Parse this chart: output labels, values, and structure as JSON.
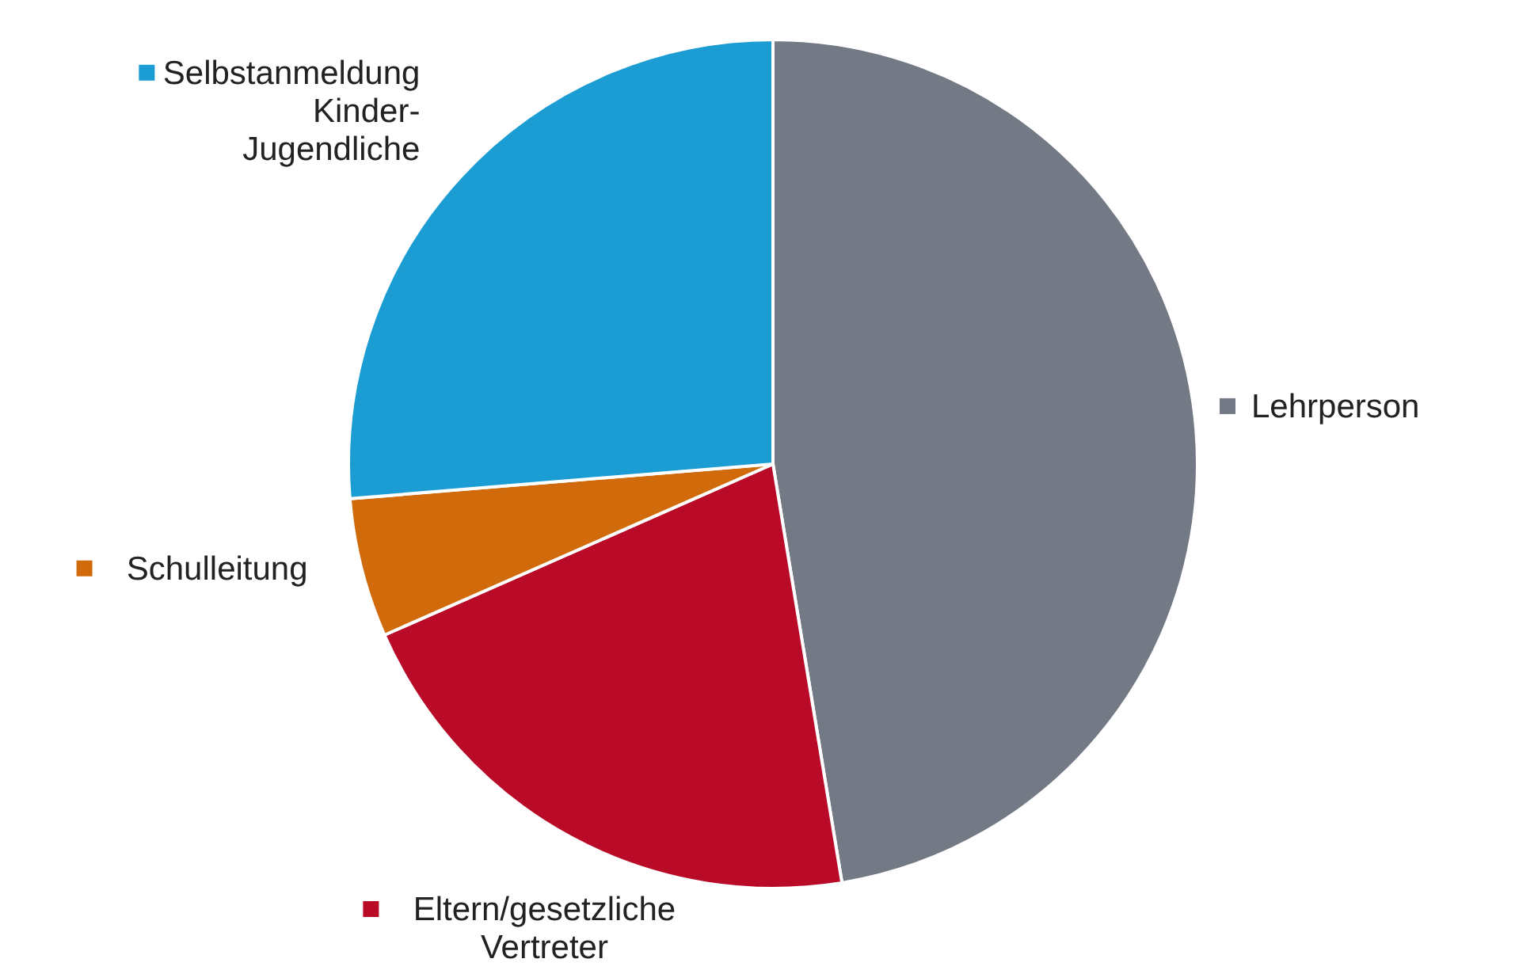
{
  "chart_data": {
    "type": "pie",
    "categories": [
      "Lehrperson",
      "Eltern/gesetzliche Vertreter",
      "Schulleitung",
      "Selbstanmeldung Kinder-Jugendliche"
    ],
    "values": [
      47.4,
      21,
      5.3,
      26.3
    ],
    "colors": [
      "#737985",
      "#b90a28",
      "#d06a0a",
      "#1b9dd4"
    ],
    "legend": "left"
  }
}
